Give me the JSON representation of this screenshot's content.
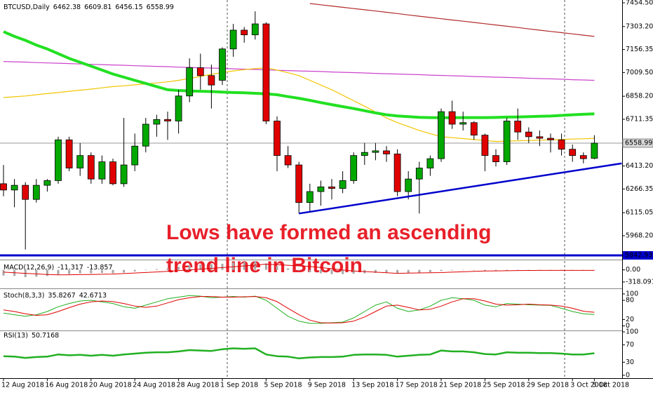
{
  "chart_data": [
    {
      "type": "candlestick",
      "symbol": "BTCUSD,Daily",
      "up_color": "#00a800",
      "down_color": "#e00000",
      "categories": [
        "12 Aug 2018",
        null,
        null,
        null,
        "16 Aug 2018",
        null,
        null,
        null,
        "20 Aug 2018",
        null,
        null,
        null,
        "24 Aug 2018",
        null,
        null,
        null,
        "28 Aug 2018",
        null,
        null,
        null,
        "1 Sep 2018",
        null,
        null,
        null,
        "5 Sep 2018",
        null,
        null,
        null,
        "9 Sep 2018",
        null,
        null,
        null,
        "13 Sep 2018",
        null,
        null,
        null,
        "17 Sep 2018",
        null,
        null,
        null,
        "21 Sep 2018",
        null,
        null,
        null,
        "25 Sep 2018",
        null,
        null,
        null,
        "29 Sep 2018",
        null,
        null,
        null,
        "3 Oct 2018",
        null,
        "5 Oct 2018"
      ],
      "open": [
        6300,
        6260,
        6290,
        6200,
        6290,
        6320,
        6580,
        6400,
        6480,
        6330,
        6440,
        6300,
        6420,
        6540,
        6680,
        6710,
        6700,
        6860,
        7040,
        6990,
        6960,
        7160,
        7280,
        7250,
        7320,
        6700,
        6480,
        6420,
        6180,
        6250,
        6280,
        6270,
        6320,
        6480,
        6500,
        6510,
        6490,
        6250,
        6330,
        6400,
        6460,
        6760,
        6680,
        6690,
        6610,
        6480,
        6440,
        6700,
        6630,
        6600,
        6590,
        6580,
        6520,
        6480,
        6462.38
      ],
      "high": [
        6420,
        6330,
        6310,
        6330,
        6330,
        6600,
        6600,
        6560,
        6500,
        6480,
        6460,
        6720,
        6620,
        6720,
        6740,
        6760,
        6900,
        7100,
        7130,
        7060,
        7170,
        7320,
        7300,
        7400,
        7330,
        6730,
        6540,
        6440,
        6300,
        6320,
        6330,
        6380,
        6500,
        6560,
        6560,
        6540,
        6520,
        6380,
        6440,
        6480,
        6780,
        6830,
        6760,
        6700,
        6620,
        6520,
        6720,
        6780,
        6660,
        6640,
        6620,
        6620,
        6550,
        6500,
        6609.81
      ],
      "low": [
        6220,
        6150,
        5880,
        6180,
        6250,
        6300,
        6380,
        6350,
        6300,
        6300,
        6290,
        6280,
        6380,
        6500,
        6600,
        6580,
        6620,
        6820,
        6900,
        6780,
        6930,
        7110,
        7200,
        7220,
        6680,
        6380,
        6400,
        6110,
        6120,
        6160,
        6200,
        6240,
        6300,
        6420,
        6450,
        6440,
        6220,
        6200,
        6110,
        6350,
        6440,
        6650,
        6640,
        6580,
        6380,
        6410,
        6420,
        6580,
        6560,
        6540,
        6500,
        6480,
        6440,
        6430,
        6456.15
      ],
      "close": [
        6260,
        6290,
        6200,
        6290,
        6320,
        6580,
        6400,
        6480,
        6330,
        6440,
        6300,
        6420,
        6540,
        6680,
        6710,
        6700,
        6860,
        7040,
        6990,
        6930,
        7160,
        7280,
        7250,
        7320,
        6700,
        6480,
        6420,
        6180,
        6250,
        6280,
        6270,
        6320,
        6480,
        6500,
        6510,
        6490,
        6250,
        6330,
        6400,
        6460,
        6760,
        6680,
        6690,
        6610,
        6480,
        6440,
        6700,
        6630,
        6600,
        6590,
        6580,
        6520,
        6480,
        6460,
        6558.99
      ],
      "moving_averages": [
        {
          "color": "#b22a2a",
          "style": "thin",
          "values": [
            null,
            null,
            null,
            null,
            null,
            null,
            null,
            null,
            null,
            null,
            null,
            null,
            null,
            null,
            null,
            null,
            null,
            null,
            null,
            null,
            null,
            null,
            null,
            null,
            null,
            null,
            null,
            null,
            7450,
            7442,
            7434,
            7426,
            7418,
            7410,
            7402,
            7394,
            7386,
            7377,
            7369,
            7361,
            7353,
            7345,
            7337,
            7329,
            7321,
            7313,
            7305,
            7297,
            7288,
            7280,
            7272,
            7264,
            7256,
            7248,
            7240
          ]
        },
        {
          "color": "#cc44cc",
          "style": "thin",
          "values": [
            7080,
            7078,
            7076,
            7073,
            7071,
            7069,
            7067,
            7064,
            7062,
            7060,
            7058,
            7056,
            7053,
            7051,
            7049,
            7047,
            7044,
            7042,
            7040,
            7038,
            7036,
            7033,
            7031,
            7029,
            7027,
            7024,
            7022,
            7020,
            7018,
            7016,
            7013,
            7011,
            7009,
            7007,
            7004,
            7002,
            7000,
            6998,
            6996,
            6993,
            6991,
            6989,
            6987,
            6984,
            6982,
            6980,
            6978,
            6976,
            6973,
            6971,
            6969,
            6967,
            6964,
            6962,
            6960
          ]
        },
        {
          "color": "#f2c500",
          "style": "thin",
          "values": [
            6850,
            6855,
            6860,
            6868,
            6875,
            6882,
            6890,
            6897,
            6904,
            6912,
            6920,
            6925,
            6931,
            6937,
            6943,
            6950,
            6960,
            6972,
            6985,
            6998,
            7010,
            7020,
            7028,
            7035,
            7040,
            7025,
            7008,
            6990,
            6960,
            6930,
            6900,
            6865,
            6830,
            6795,
            6758,
            6720,
            6690,
            6665,
            6640,
            6620,
            6600,
            6594,
            6588,
            6582,
            6576,
            6570,
            6572,
            6574,
            6576,
            6578,
            6580,
            6582,
            6585,
            6587,
            6590
          ]
        },
        {
          "color": "#22e022",
          "style": "thick",
          "values": [
            7270,
            7240,
            7215,
            7185,
            7160,
            7130,
            7100,
            7075,
            7050,
            7025,
            7000,
            6980,
            6960,
            6940,
            6920,
            6900,
            6895,
            6892,
            6890,
            6888,
            6885,
            6882,
            6880,
            6877,
            6874,
            6868,
            6856,
            6845,
            6832,
            6818,
            6805,
            6792,
            6780,
            6766,
            6752,
            6740,
            6733,
            6728,
            6724,
            6722,
            6721,
            6721,
            6722,
            6722,
            6722,
            6723,
            6725,
            6726,
            6728,
            6730,
            6732,
            6736,
            6740,
            6743,
            6746
          ]
        }
      ],
      "trend_line": {
        "color": "#0000cc",
        "start": {
          "index": 27,
          "value": 6110
        },
        "end": {
          "index": 56.5,
          "value": 6430
        }
      },
      "horizontal_line": {
        "color": "#0000cc",
        "value": 5842.93,
        "label": "5842.93"
      },
      "annotation": [
        "Lows have formed an ascending",
        "trend line in Bitcoin"
      ],
      "ylim": [
        5820.4,
        7472.4
      ],
      "yticks": [
        {
          "value": 7454.5,
          "label": "7454.50"
        },
        {
          "value": 7303.2,
          "label": "7303.20"
        },
        7156.35,
        {
          "value": 7009.5,
          "label": "7009.50"
        },
        {
          "value": 6858.2,
          "label": "6858.20"
        },
        6711.35,
        {
          "value": 6413.2,
          "label": "6413.20"
        },
        6266.35,
        6115.05,
        {
          "value": 5968.2,
          "label": "5968.20"
        }
      ],
      "grid": false
    },
    {
      "type": "bar",
      "name": "MACD(12,26,9)",
      "color": "#a8a8a8",
      "values": [
        -150,
        -160,
        -190,
        -180,
        -160,
        -120,
        -110,
        -90,
        -90,
        -80,
        -90,
        -70,
        -40,
        -10,
        20,
        40,
        80,
        120,
        140,
        150,
        160,
        190,
        210,
        230,
        170,
        100,
        40,
        -20,
        -60,
        -90,
        -110,
        -110,
        -100,
        -90,
        -80,
        -75,
        -90,
        -85,
        -75,
        -60,
        -30,
        -15,
        -5,
        -10,
        -25,
        -30,
        -15,
        -10,
        -10,
        -10,
        -10,
        -12,
        -13,
        -12,
        -11.317
      ],
      "signal": {
        "color": "#e00000",
        "values": [
          -60,
          -75,
          -90,
          -105,
          -120,
          -130,
          -128,
          -124,
          -120,
          -115,
          -110,
          -96,
          -82,
          -68,
          -54,
          -40,
          -20,
          0,
          20,
          40,
          60,
          82,
          105,
          128,
          150,
          135,
          120,
          105,
          90,
          60,
          30,
          0,
          -30,
          -45,
          -60,
          -75,
          -90,
          -85,
          -80,
          -75,
          -70,
          -60,
          -50,
          -40,
          -30,
          -26,
          -22,
          -18,
          -15,
          -14,
          -14,
          -14,
          -14,
          -14,
          -13.857
        ]
      },
      "ylim": [
        -466,
        233
      ],
      "yticks": [
        {
          "value": 0,
          "label": "0.00"
        },
        -318.091
      ]
    },
    {
      "type": "line",
      "name": "Stoch(8,3,3)",
      "series": [
        {
          "color": "#22b022",
          "values": [
            40,
            35,
            30,
            35,
            45,
            60,
            70,
            78,
            80,
            75,
            70,
            60,
            55,
            65,
            75,
            85,
            90,
            95,
            93,
            88,
            90,
            92,
            90,
            93,
            80,
            55,
            30,
            15,
            8,
            8,
            10,
            12,
            25,
            45,
            65,
            75,
            55,
            45,
            50,
            62,
            80,
            88,
            85,
            80,
            65,
            60,
            70,
            68,
            66,
            65,
            64,
            55,
            45,
            38,
            35.8267
          ]
        },
        {
          "color": "#e00000",
          "values": [
            50,
            45,
            38,
            33,
            35,
            45,
            57,
            68,
            75,
            78,
            76,
            70,
            62,
            58,
            62,
            72,
            82,
            88,
            92,
            92,
            90,
            90,
            91,
            92,
            88,
            76,
            55,
            35,
            18,
            10,
            9,
            10,
            15,
            28,
            45,
            62,
            65,
            58,
            50,
            52,
            62,
            75,
            85,
            85,
            78,
            68,
            65,
            66,
            68,
            66,
            65,
            62,
            55,
            46,
            42.6713
          ]
        }
      ],
      "ylim": [
        -12,
        113
      ],
      "yticks": [
        100,
        80,
        20,
        0
      ]
    },
    {
      "type": "line",
      "name": "RSI(13)",
      "series": [
        {
          "color": "#22b022",
          "values": [
            44,
            43,
            40,
            42,
            43,
            48,
            46,
            47,
            45,
            47,
            45,
            48,
            50,
            52,
            53,
            53,
            55,
            58,
            57,
            56,
            60,
            62,
            61,
            62,
            48,
            44,
            43,
            39,
            41,
            42,
            42,
            43,
            47,
            48,
            48,
            47,
            43,
            45,
            47,
            48,
            57,
            55,
            55,
            53,
            49,
            48,
            53,
            52,
            52,
            51,
            51,
            50,
            48,
            48,
            50.7168
          ]
        }
      ],
      "ylim": [
        -5,
        100
      ],
      "yticks": [
        100,
        70,
        30,
        0
      ]
    }
  ]
}
